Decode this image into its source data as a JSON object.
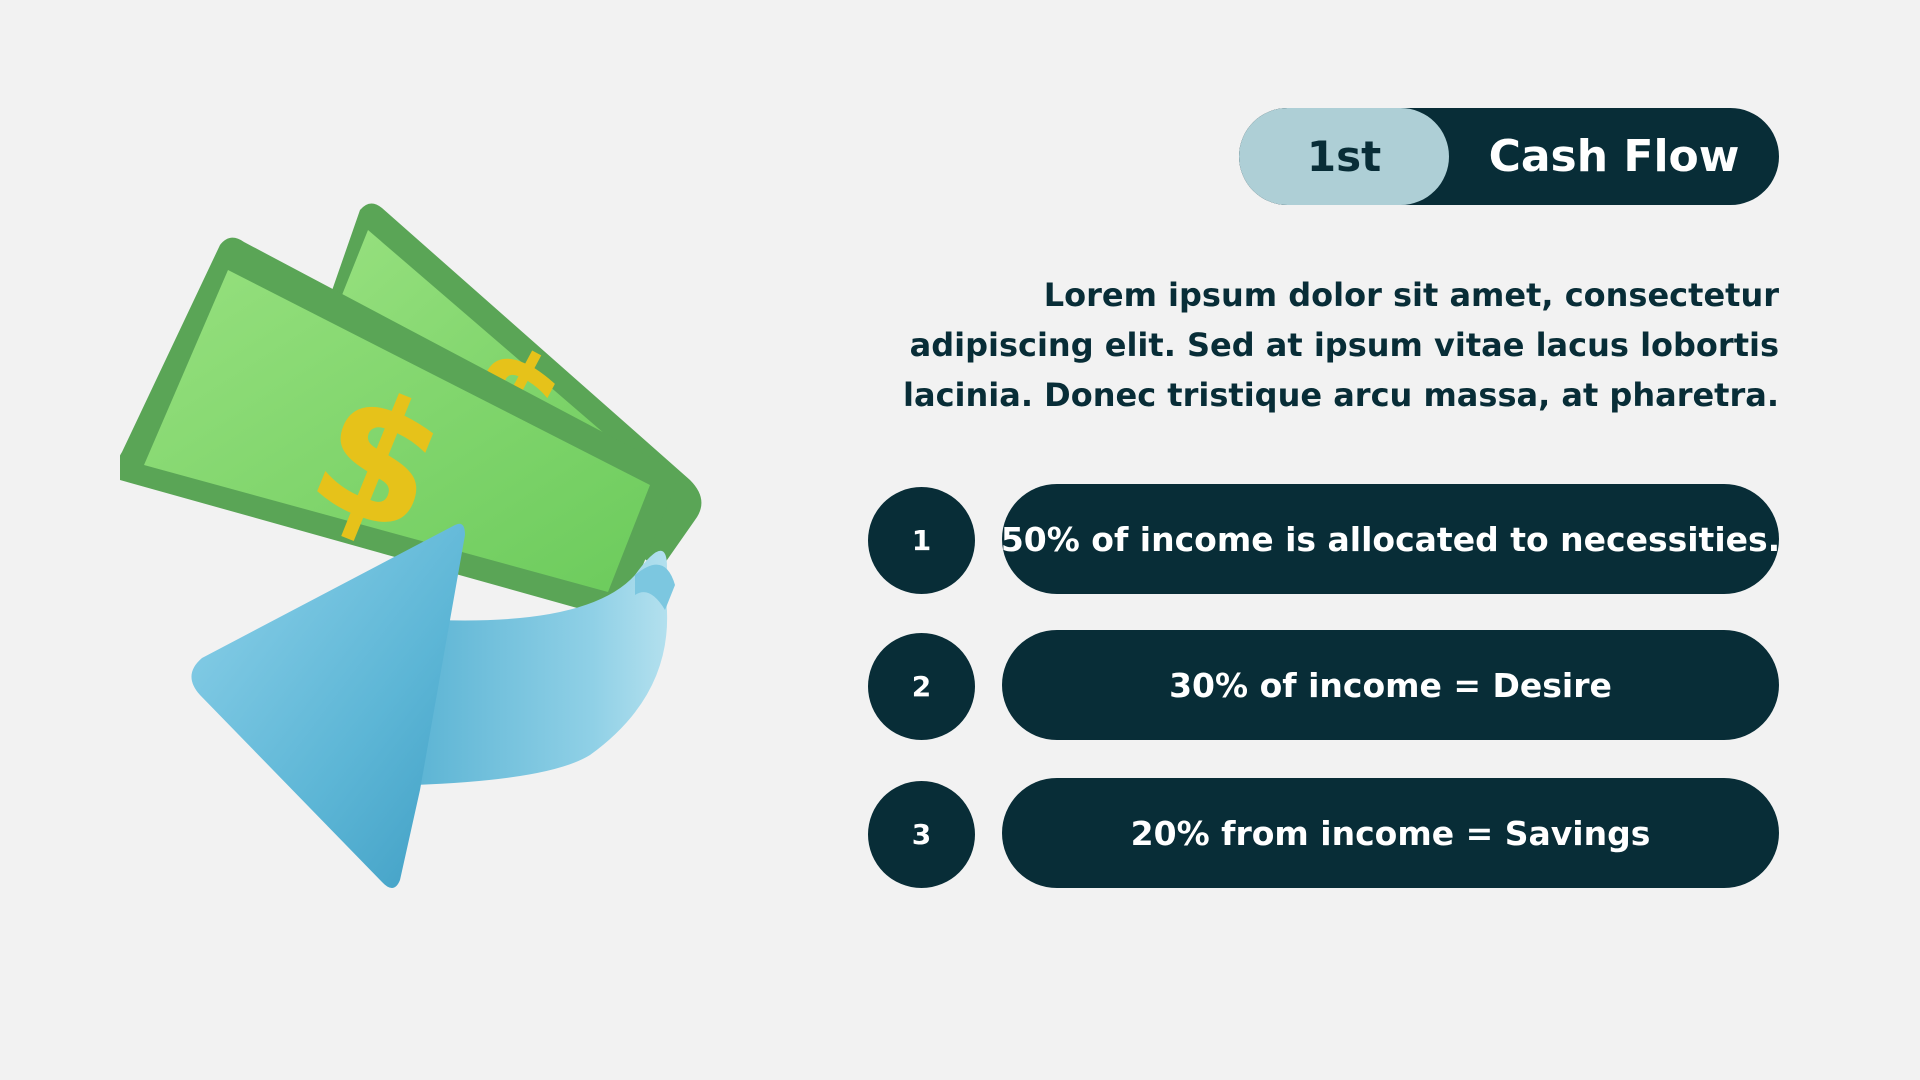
{
  "header": {
    "number": "1st",
    "title": "Cash Flow"
  },
  "description": "Lorem ipsum dolor sit amet, consectetur adipiscing elit. Sed at ipsum vitae lacus lobortis lacinia. Donec tristique arcu massa, at pharetra.",
  "items": [
    {
      "number": "1",
      "text": "50% of income is allocated to necessities."
    },
    {
      "number": "2",
      "text": "30% of income = Desire"
    },
    {
      "number": "3",
      "text": "20% from income = Savings"
    }
  ],
  "illustration": {
    "icon": "money-cash-flow-icon",
    "symbol": "$"
  },
  "colors": {
    "background": "#f2f2f2",
    "primary": "#082d37",
    "accent": "#aecfd6",
    "bill_green": "#7fd86a",
    "bill_dark": "#5aa556",
    "dollar": "#e6c21a",
    "arrow_blue": "#6cbfdc"
  }
}
